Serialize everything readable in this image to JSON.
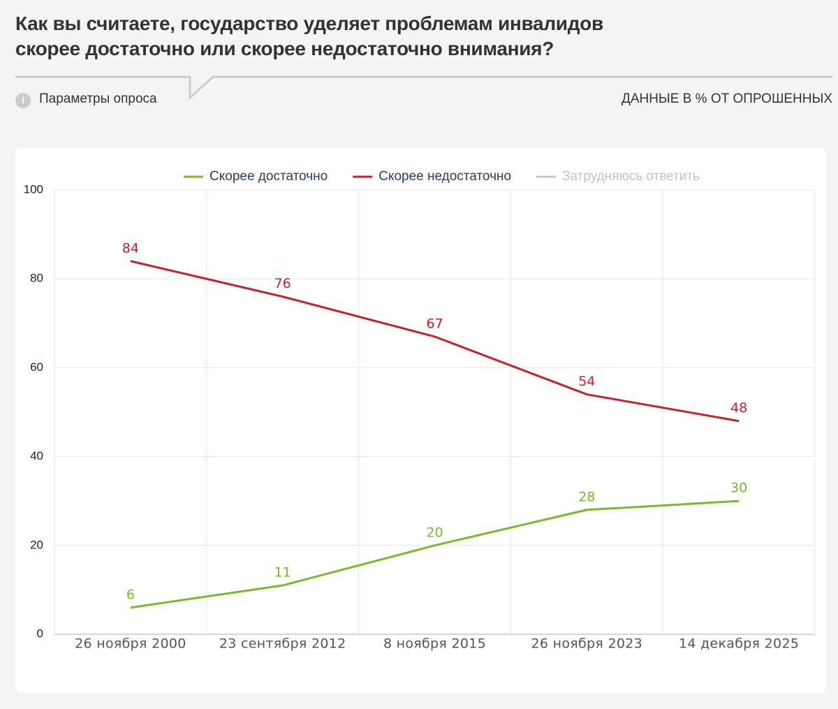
{
  "chart_data": {
    "type": "line",
    "title": "Как вы считаете, государство уделяет проблемам инвалидов скорее достаточно или скорее недостаточно внимания?",
    "subtitle": "Параметры опроса",
    "note": "ДАННЫЕ В % ОТ ОПРОШЕННЫХ",
    "categories": [
      "26 ноября 2000",
      "23 сентября 2012",
      "8 ноября 2015",
      "26 ноября 2023",
      "14 декабря 2025"
    ],
    "series": [
      {
        "name": "Скорее достаточно",
        "color": "#7ab929",
        "values": [
          6,
          11,
          20,
          28,
          30
        ]
      },
      {
        "name": "Скорее недостаточно",
        "color": "#c8202e",
        "values": [
          84,
          76,
          67,
          54,
          48
        ]
      },
      {
        "name": "Затрудняюсь ответить",
        "color": "#c4c4c4",
        "hidden": true,
        "values": [
          null,
          null,
          null,
          null,
          null
        ]
      }
    ],
    "ylim": [
      0,
      100
    ],
    "yticks": [
      0,
      20,
      40,
      60,
      80,
      100
    ],
    "grid": true
  }
}
